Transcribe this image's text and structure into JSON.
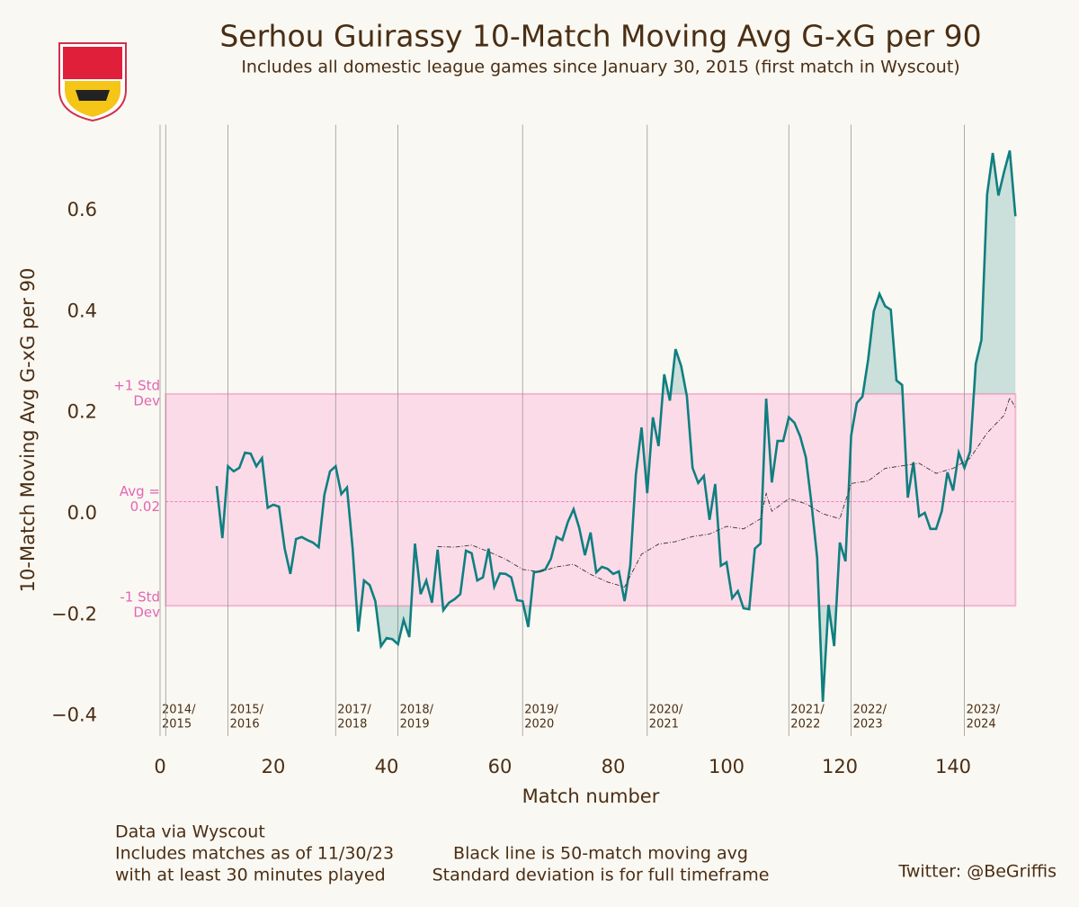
{
  "chart_data": {
    "type": "line",
    "title": "Serhou Guirassy 10-Match Moving Avg G-xG per 90",
    "subtitle": "Includes all domestic league games since January 30, 2015 (first match in Wyscout)",
    "xlabel": "Match number",
    "ylabel": "10-Match Moving Avg G-xG per 90",
    "xlim": [
      -3,
      155
    ],
    "ylim": [
      -0.44,
      0.77
    ],
    "xticks": [
      0,
      20,
      40,
      60,
      80,
      100,
      120,
      140
    ],
    "yticks": [
      {
        "value": -0.4,
        "label": "−0.4"
      },
      {
        "value": -0.2,
        "label": "−0.2"
      },
      {
        "value": 0,
        "label": "0.0"
      },
      0.2,
      0.4,
      0.6
    ],
    "mean": {
      "value": 0.024,
      "label": [
        "Avg =",
        "0.02"
      ]
    },
    "std_band": {
      "upper": 0.237,
      "lower": -0.182,
      "upper_label": [
        "+1 Std",
        "Dev"
      ],
      "lower_label": [
        "-1 Std",
        "Dev"
      ],
      "color": "#fcdbe8"
    },
    "seasons": [
      {
        "x": 0,
        "label": [
          "2014/",
          "2015"
        ]
      },
      {
        "x": 12,
        "label": [
          "2015/",
          "2016"
        ]
      },
      {
        "x": 31,
        "label": [
          "2017/",
          "2018"
        ]
      },
      {
        "x": 42,
        "label": [
          "2018/",
          "2019"
        ]
      },
      {
        "x": 64,
        "label": [
          "2019/",
          "2020"
        ]
      },
      {
        "x": 86,
        "label": [
          "2020/",
          "2021"
        ]
      },
      {
        "x": 111,
        "label": [
          "2021/",
          "2022"
        ]
      },
      {
        "x": 122,
        "label": [
          "2022/",
          "2023"
        ]
      },
      {
        "x": 142,
        "label": [
          "2023/",
          "2024"
        ]
      }
    ],
    "season_extra_lines": [
      1
    ],
    "series": [
      {
        "color": "#0f7f80",
        "x": [
          10,
          11,
          12,
          13,
          14,
          15,
          16,
          17,
          18,
          19,
          20,
          21,
          22,
          23,
          24,
          25,
          26,
          27,
          28,
          29,
          30,
          31,
          32,
          33,
          34,
          35,
          36,
          37,
          38,
          39,
          40,
          41,
          42,
          43,
          44,
          45,
          46,
          47,
          48,
          49,
          50,
          51,
          52,
          53,
          54,
          55,
          56,
          57,
          58,
          59,
          60,
          61,
          62,
          63,
          64,
          65,
          66,
          67,
          68,
          69,
          70,
          71,
          72,
          73,
          74,
          75,
          76,
          77,
          78,
          79,
          80,
          81,
          82,
          83,
          84,
          85,
          86,
          87,
          88,
          89,
          90,
          91,
          92,
          93,
          94,
          95,
          96,
          97,
          98,
          99,
          100,
          101,
          102,
          103,
          104,
          105,
          106,
          107,
          108,
          109,
          110,
          111,
          112,
          113,
          114,
          115,
          116,
          117,
          118,
          119,
          120,
          121,
          122,
          123,
          124,
          125,
          126,
          127,
          128,
          129,
          130,
          131,
          132,
          133,
          134,
          135,
          136,
          137,
          138,
          139,
          140,
          141,
          142,
          143,
          144,
          145,
          146,
          147,
          148,
          149,
          150,
          151
        ],
        "values": [
          0.055,
          -0.048,
          0.094,
          0.084,
          0.091,
          0.121,
          0.119,
          0.094,
          0.11,
          0.012,
          0.018,
          0.014,
          -0.069,
          -0.119,
          -0.05,
          -0.046,
          -0.052,
          -0.057,
          -0.066,
          0.037,
          0.084,
          0.094,
          0.039,
          0.052,
          -0.069,
          -0.233,
          -0.132,
          -0.141,
          -0.173,
          -0.262,
          -0.246,
          -0.248,
          -0.258,
          -0.21,
          -0.244,
          -0.059,
          -0.159,
          -0.132,
          -0.176,
          -0.071,
          -0.191,
          -0.176,
          -0.169,
          -0.159,
          -0.073,
          -0.078,
          -0.132,
          -0.126,
          -0.069,
          -0.144,
          -0.118,
          -0.119,
          -0.126,
          -0.171,
          -0.173,
          -0.224,
          -0.116,
          -0.114,
          -0.11,
          -0.089,
          -0.046,
          -0.052,
          -0.016,
          0.009,
          -0.028,
          -0.082,
          -0.037,
          -0.116,
          -0.105,
          -0.109,
          -0.119,
          -0.114,
          -0.173,
          -0.102,
          0.078,
          0.171,
          0.041,
          0.191,
          0.134,
          0.276,
          0.224,
          0.326,
          0.292,
          0.233,
          0.091,
          0.061,
          0.075,
          -0.012,
          0.059,
          -0.103,
          -0.096,
          -0.167,
          -0.153,
          -0.187,
          -0.189,
          -0.069,
          -0.059,
          0.228,
          0.062,
          0.144,
          0.144,
          0.191,
          0.18,
          0.153,
          0.112,
          0.02,
          -0.087,
          -0.372,
          -0.18,
          -0.262,
          -0.057,
          -0.094,
          0.155,
          0.219,
          0.232,
          0.305,
          0.401,
          0.435,
          0.411,
          0.404,
          0.264,
          0.255,
          0.032,
          0.102,
          -0.005,
          0.002,
          -0.03,
          -0.03,
          0.005,
          0.082,
          0.046,
          0.121,
          0.091,
          0.123,
          0.297,
          0.344,
          0.632,
          0.714,
          0.63,
          0.677,
          0.719,
          0.589
        ]
      },
      {
        "color": "#333333",
        "dashed": true,
        "x": [
          49,
          52,
          55,
          58,
          61,
          64,
          67,
          70,
          73,
          76,
          79,
          82,
          85,
          88,
          91,
          94,
          97,
          100,
          103,
          106,
          107,
          108,
          111,
          114,
          117,
          120,
          122,
          125,
          128,
          131,
          134,
          137,
          140,
          143,
          146,
          149,
          150,
          151
        ],
        "values": [
          -0.065,
          -0.066,
          -0.062,
          -0.075,
          -0.09,
          -0.11,
          -0.115,
          -0.105,
          -0.1,
          -0.12,
          -0.135,
          -0.145,
          -0.08,
          -0.06,
          -0.055,
          -0.045,
          -0.04,
          -0.025,
          -0.03,
          -0.01,
          0.04,
          0.005,
          0.03,
          0.02,
          0,
          -0.01,
          0.06,
          0.065,
          0.09,
          0.095,
          0.1,
          0.08,
          0.09,
          0.11,
          0.16,
          0.195,
          0.23,
          0.21
        ]
      }
    ],
    "notes_left": [
      "Data via Wyscout",
      "Includes matches as of 11/30/23",
      "with at least 30 minutes played"
    ],
    "notes_center": [
      "Black line is 50-match moving avg",
      "Standard deviation is for full timeframe"
    ],
    "credit": "Twitter: @BeGriffis"
  }
}
